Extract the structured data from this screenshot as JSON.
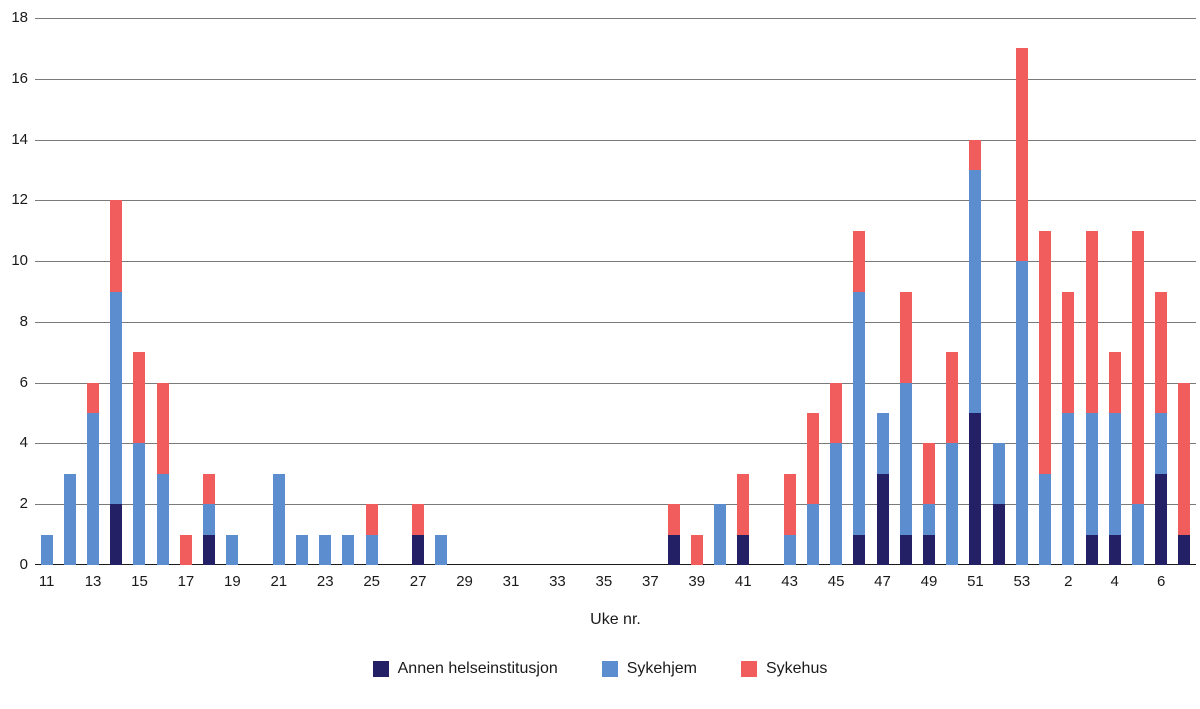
{
  "chart_data": {
    "type": "bar",
    "stacked": true,
    "title": "",
    "xlabel": "Uke nr.",
    "ylabel": "",
    "ylim": [
      0,
      18
    ],
    "ytick_step": 2,
    "xtick_every": 2,
    "grid": true,
    "legend_position": "bottom",
    "categories": [
      "11",
      "12",
      "13",
      "14",
      "15",
      "16",
      "17",
      "18",
      "19",
      "20",
      "21",
      "22",
      "23",
      "24",
      "25",
      "26",
      "27",
      "28",
      "29",
      "30",
      "31",
      "32",
      "33",
      "34",
      "35",
      "36",
      "37",
      "38",
      "39",
      "40",
      "41",
      "42",
      "43",
      "44",
      "45",
      "46",
      "47",
      "48",
      "49",
      "50",
      "51",
      "52",
      "53",
      "1",
      "2",
      "3",
      "4",
      "5",
      "6",
      "7"
    ],
    "series": [
      {
        "name": "Annen helseinstitusjon",
        "color": "#232066",
        "values": [
          0,
          0,
          0,
          2,
          0,
          0,
          0,
          1,
          0,
          0,
          0,
          0,
          0,
          0,
          0,
          0,
          1,
          0,
          0,
          0,
          0,
          0,
          0,
          0,
          0,
          0,
          0,
          1,
          0,
          0,
          1,
          0,
          0,
          0,
          0,
          1,
          3,
          1,
          1,
          0,
          5,
          2,
          0,
          0,
          0,
          1,
          1,
          0,
          3,
          1
        ]
      },
      {
        "name": "Sykehjem",
        "color": "#5B8DCF",
        "values": [
          1,
          3,
          5,
          7,
          4,
          3,
          0,
          1,
          1,
          0,
          3,
          1,
          1,
          1,
          1,
          0,
          0,
          1,
          0,
          0,
          0,
          0,
          0,
          0,
          0,
          0,
          0,
          0,
          0,
          2,
          0,
          0,
          1,
          2,
          4,
          8,
          2,
          5,
          1,
          4,
          8,
          2,
          10,
          3,
          5,
          4,
          4,
          2,
          2,
          0
        ]
      },
      {
        "name": "Sykehus",
        "color": "#F15D5D",
        "values": [
          0,
          0,
          1,
          3,
          3,
          3,
          1,
          1,
          0,
          0,
          0,
          0,
          0,
          0,
          1,
          0,
          1,
          0,
          0,
          0,
          0,
          0,
          0,
          0,
          0,
          0,
          0,
          1,
          1,
          0,
          2,
          0,
          2,
          3,
          2,
          2,
          0,
          3,
          2,
          3,
          1,
          0,
          7,
          8,
          4,
          6,
          2,
          9,
          4,
          5
        ]
      }
    ]
  }
}
